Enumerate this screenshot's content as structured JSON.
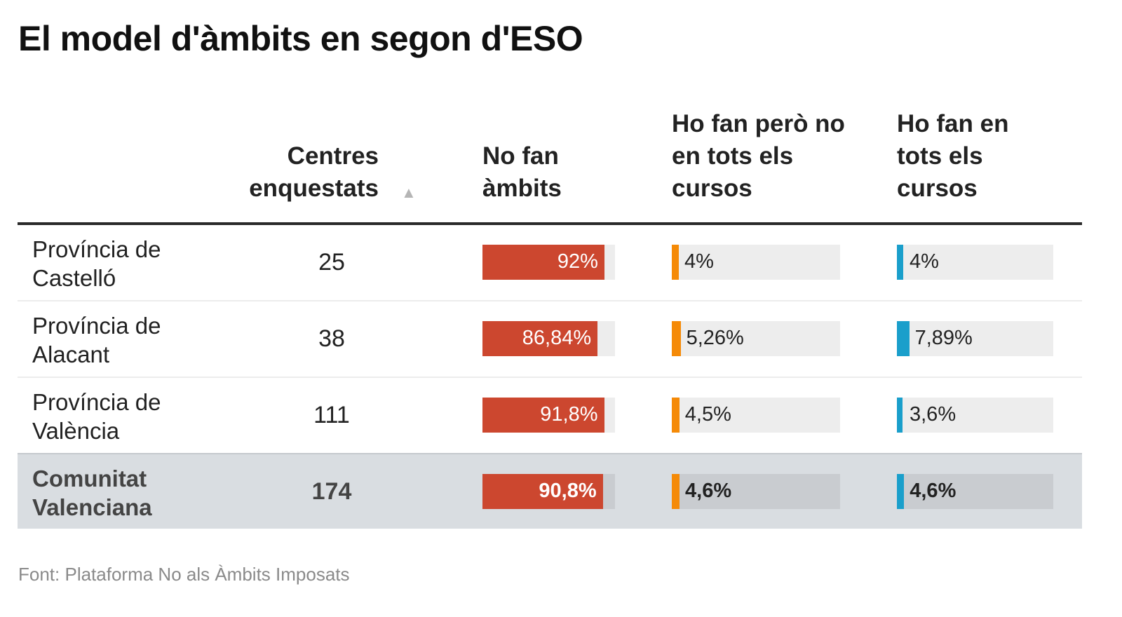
{
  "title": "El model d'àmbits en segon d'ESO",
  "columns": {
    "centres": "Centres enquestats",
    "no_fan": "No fan àmbits",
    "parcial": "Ho fan però no en tots els cursos",
    "tots": "Ho fan en tots els cursos",
    "sort_icon": "sort-ascending-triangle"
  },
  "colors": {
    "no_fan": "#cc472f",
    "parcial": "#f58a07",
    "tots": "#1a9fcb"
  },
  "chart_data": {
    "type": "table",
    "rows": [
      {
        "label": "Província de Castelló",
        "centres": "25",
        "no_fan": 92,
        "no_fan_label": "92%",
        "parcial": 4,
        "parcial_label": "4%",
        "tots": 4,
        "tots_label": "4%"
      },
      {
        "label": "Província de Alacant",
        "centres": "38",
        "no_fan": 86.84,
        "no_fan_label": "86,84%",
        "parcial": 5.26,
        "parcial_label": "5,26%",
        "tots": 7.89,
        "tots_label": "7,89%"
      },
      {
        "label": "Província de València",
        "centres": "111",
        "no_fan": 91.8,
        "no_fan_label": "91,8%",
        "parcial": 4.5,
        "parcial_label": "4,5%",
        "tots": 3.6,
        "tots_label": "3,6%"
      },
      {
        "label": "Comunitat Valenciana",
        "centres": "174",
        "no_fan": 90.8,
        "no_fan_label": "90,8%",
        "parcial": 4.6,
        "parcial_label": "4,6%",
        "tots": 4.6,
        "tots_label": "4,6%",
        "highlight": true
      }
    ],
    "bar_range": [
      0,
      100
    ]
  },
  "source": "Font: Plataforma No als Àmbits Imposats"
}
